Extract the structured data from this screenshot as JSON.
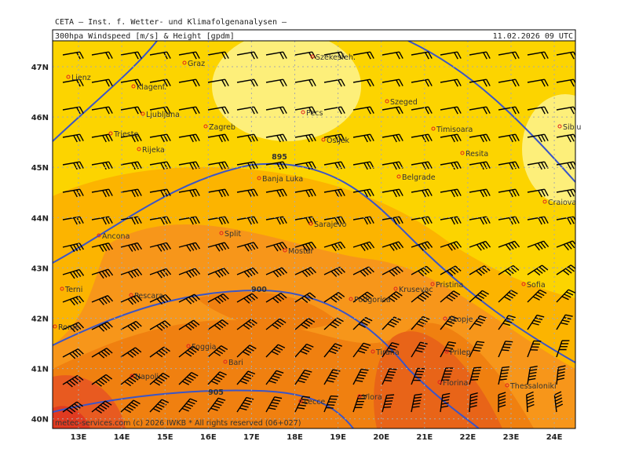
{
  "header": {
    "institute": "CETA — Inst. f. Wetter- und Klimafolgenanalysen —",
    "product": "300hpa Windspeed [m/s] & Height [gpdm]",
    "valid_time": "11.02.2026 09 UTC"
  },
  "map": {
    "lat_labels": [
      "47N",
      "46N",
      "45N",
      "44N",
      "43N",
      "42N",
      "41N",
      "40N"
    ],
    "lon_labels": [
      "13E",
      "14E",
      "15E",
      "16E",
      "17E",
      "18E",
      "19E",
      "20E",
      "21E",
      "22E",
      "23E",
      "24E"
    ],
    "contour_labels": [
      "895",
      "900",
      "905"
    ],
    "cities": [
      "Lienz",
      "Graz",
      "Szekesfeh.",
      "Klagenf.",
      "Ljubljana",
      "Zagreb",
      "Pecs",
      "Szeged",
      "Trieste",
      "Rijeka",
      "Osijek",
      "Timisoara",
      "Sibiu",
      "Resita",
      "Banja Luka",
      "Belgrade",
      "Craiova",
      "Ancona",
      "Split",
      "Sarajevo",
      "Mostar",
      "Terni",
      "Pescara",
      "Podgorica",
      "Krusevac",
      "Pristina",
      "Sofia",
      "Rome",
      "Skopje",
      "Foggia",
      "Tirana",
      "Prilep",
      "Bari",
      "Napoli",
      "Florina",
      "Thessaloniki",
      "Lecce",
      "Vlora"
    ]
  },
  "footer": {
    "copyright": "meteo-services.com (c) 2026 IWKB * All rights reserved (06+027)"
  }
}
